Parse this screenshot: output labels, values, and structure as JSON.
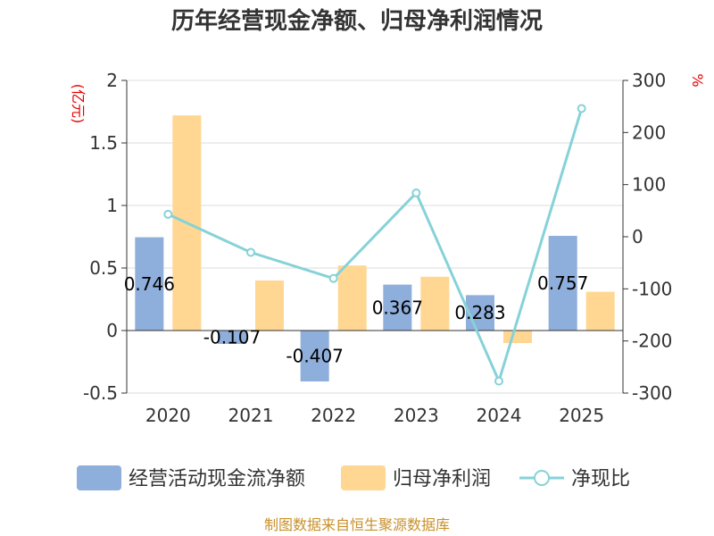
{
  "chart_data": {
    "type": "bar+line",
    "title": "历年经营现金净额、归母净利润情况",
    "categories": [
      "2020",
      "2021",
      "2022",
      "2023",
      "2024",
      "2025"
    ],
    "series": [
      {
        "name": "经营活动现金流净额",
        "kind": "bar",
        "axis": "left",
        "color": "#8eaedb",
        "values": [
          0.746,
          -0.107,
          -0.407,
          0.367,
          0.283,
          0.757
        ],
        "labels": [
          "0.746",
          "-0.107",
          "-0.407",
          "0.367",
          "0.283",
          "0.757"
        ]
      },
      {
        "name": "归母净利润",
        "kind": "bar",
        "axis": "left",
        "color": "#ffd792",
        "values": [
          1.72,
          0.4,
          0.52,
          0.43,
          -0.1,
          0.31
        ]
      },
      {
        "name": "净现比",
        "kind": "line",
        "axis": "right",
        "color": "#86d2d8",
        "values": [
          43,
          -30,
          -80,
          84,
          -277,
          246
        ]
      }
    ],
    "left_axis": {
      "unit": "(亿元)",
      "ylim": [
        -0.5,
        2
      ],
      "ticks": [
        -0.5,
        0,
        0.5,
        1,
        1.5,
        2
      ],
      "tick_labels": [
        "-0.5",
        "0",
        "0.5",
        "1",
        "1.5",
        "2"
      ]
    },
    "right_axis": {
      "unit": "%",
      "ylim": [
        -300,
        300
      ],
      "ticks": [
        -300,
        -200,
        -100,
        0,
        100,
        200,
        300
      ],
      "tick_labels": [
        "-300",
        "-200",
        "-100",
        "0",
        "100",
        "200",
        "300"
      ]
    },
    "grid": true,
    "legend_position": "bottom"
  },
  "source": "制图数据来自恒生聚源数据库"
}
